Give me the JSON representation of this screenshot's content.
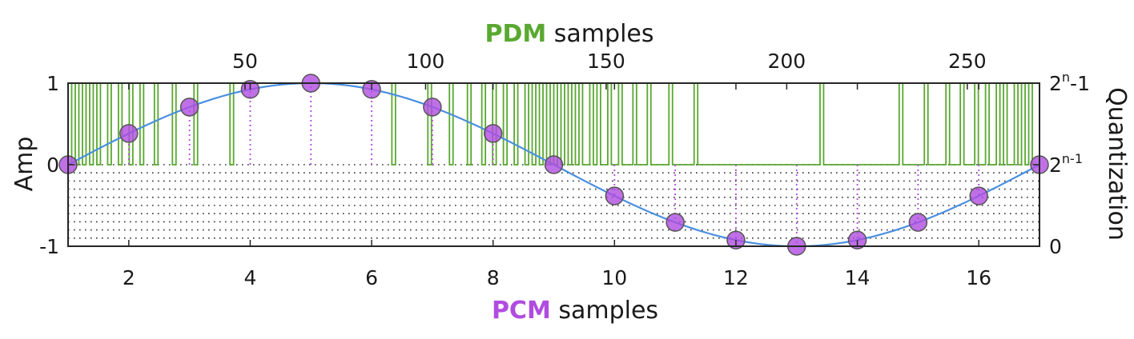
{
  "chart_data": {
    "type": "line",
    "top_axis_label": {
      "prefix": "PDM",
      "suffix": " samples",
      "prefix_color": "#5aa830"
    },
    "bottom_axis_label": {
      "prefix": "PCM",
      "suffix": " samples",
      "prefix_color": "#b04ce0"
    },
    "ylabel": "Amp",
    "y2label": "Quantization",
    "xlim": [
      1,
      17
    ],
    "ylim": [
      -1,
      1
    ],
    "top_xlim": [
      1,
      270
    ],
    "bottom_ticks": [
      2,
      4,
      6,
      8,
      10,
      12,
      14,
      16
    ],
    "top_ticks": [
      50,
      100,
      150,
      200,
      250
    ],
    "left_ticks": [
      {
        "value": 1,
        "label": "1"
      },
      {
        "value": 0,
        "label": "0"
      },
      {
        "value": -1,
        "label": "-1"
      }
    ],
    "right_ticks": [
      {
        "value": 1,
        "base": "2",
        "sup": "n",
        "tail": "-1"
      },
      {
        "value": 0,
        "base": "2",
        "sup": "n-1",
        "tail": ""
      },
      {
        "value": -1,
        "base": "0",
        "sup": "",
        "tail": ""
      }
    ],
    "quantization_levels": 10,
    "pcm_x": [
      1,
      2,
      3,
      4,
      5,
      6,
      7,
      8,
      9,
      10,
      11,
      12,
      13,
      14,
      15,
      16,
      17
    ],
    "pcm_y": [
      0,
      0.383,
      0.707,
      0.924,
      1,
      0.924,
      0.707,
      0.383,
      0,
      -0.383,
      -0.707,
      -0.924,
      -1,
      -0.924,
      -0.707,
      -0.383,
      0
    ],
    "pdm_samples": 270,
    "colors": {
      "pdm": "#5aa830",
      "sine": "#4a8fe0",
      "pcm_marker": "#b04ce0",
      "pcm_stem": "#b04ce0",
      "grid": "#333333"
    }
  }
}
